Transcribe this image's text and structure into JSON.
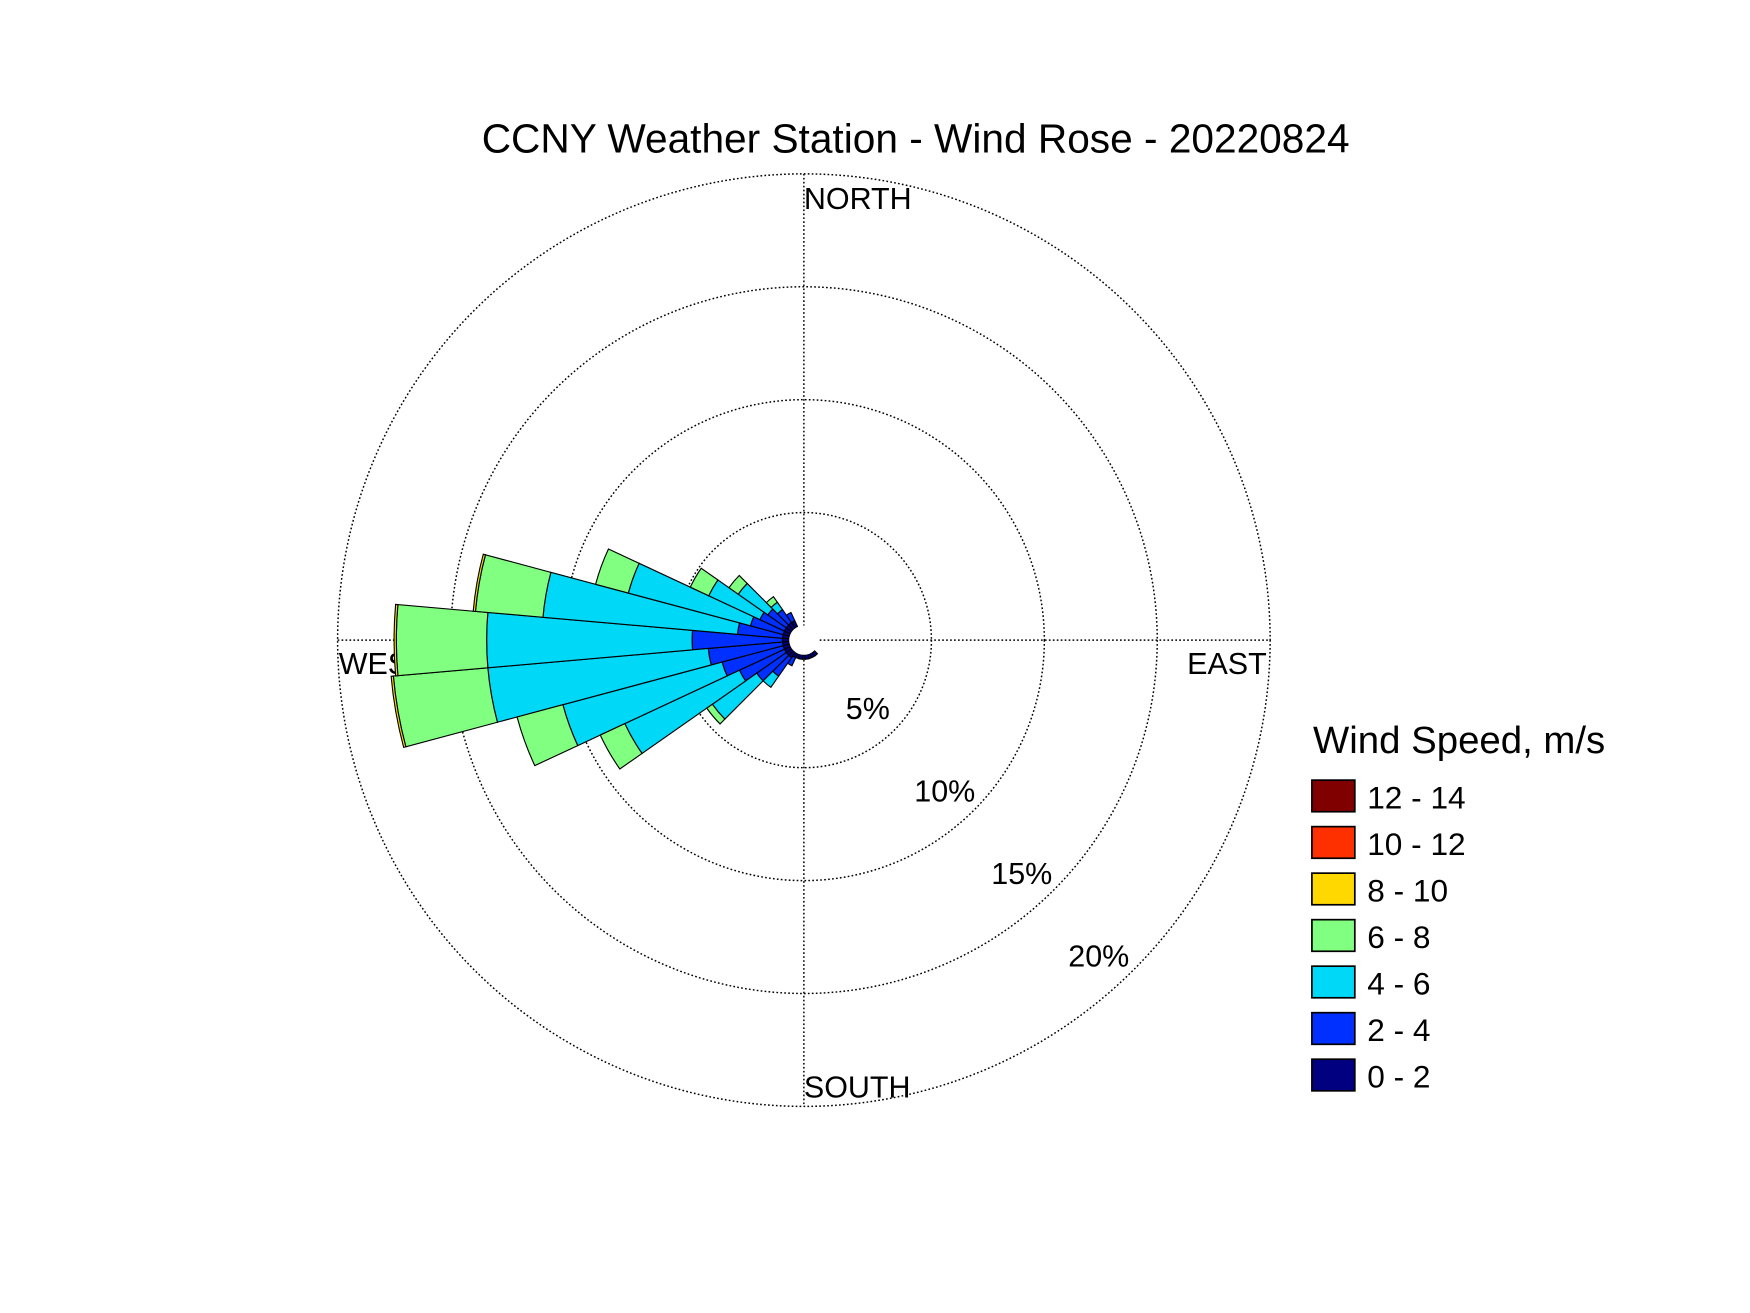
{
  "chart_data": {
    "type": "windrose",
    "title": "CCNY Weather Station - Wind Rose - 20220824",
    "compass_labels": {
      "north": "NORTH",
      "east": "EAST",
      "south": "SOUTH",
      "west": "WEST"
    },
    "legend_title": "Wind Speed, m/s",
    "categories": [
      null,
      null,
      null,
      null,
      null,
      null,
      null,
      null,
      null,
      null,
      null,
      null,
      null,
      null,
      null,
      null,
      null,
      null,
      null,
      null,
      null,
      null,
      null,
      null,
      null,
      null,
      null,
      null,
      null,
      null,
      null,
      null,
      null,
      null,
      null,
      null
    ],
    "series": [
      {
        "name": "0 - 2",
        "color": "#000080",
        "values": [
          0,
          0,
          0,
          0,
          0,
          0,
          0,
          0,
          0,
          0,
          0,
          0,
          0,
          0,
          0.2,
          0.2,
          0.2,
          0.2,
          0.2,
          0.2,
          0.2,
          0.2,
          0.3,
          0.3,
          0.3,
          0.3,
          0.3,
          0.3,
          0.3,
          0.3,
          0.3,
          0.3,
          0.3,
          0.3,
          0,
          0
        ]
      },
      {
        "name": "2 - 4",
        "color": "#0030ff",
        "values": [
          0,
          0,
          0,
          0,
          0,
          0,
          0,
          0,
          0,
          0,
          0,
          0,
          0,
          0,
          0,
          0,
          0,
          0,
          0,
          0,
          0,
          0.4,
          1.0,
          1.6,
          2.2,
          2.8,
          3.3,
          4.0,
          2.0,
          1.5,
          1.2,
          1.0,
          0.7,
          0.4,
          0,
          0
        ]
      },
      {
        "name": "4 - 6",
        "color": "#00d8f8",
        "values": [
          0,
          0,
          0,
          0,
          0,
          0,
          0,
          0,
          0,
          0,
          0,
          0,
          0,
          0,
          0,
          0,
          0,
          0,
          0,
          0,
          0,
          0,
          0.6,
          2.4,
          5.6,
          7.3,
          9.8,
          9.1,
          8.65,
          5.6,
          2.5,
          1.6,
          0.4,
          0,
          0,
          0
        ]
      },
      {
        "name": "6 - 8",
        "color": "#80ff80",
        "values": [
          0,
          0,
          0,
          0,
          0,
          0,
          0,
          0,
          0,
          0,
          0,
          0,
          0,
          0,
          0,
          0,
          0,
          0,
          0,
          0,
          0,
          0,
          0,
          0.3,
          1.2,
          2.1,
          4.2,
          4.0,
          3.0,
          1.5,
          0.9,
          0.5,
          0.3,
          0,
          0,
          0
        ]
      },
      {
        "name": "8 - 10",
        "color": "#ffd800",
        "values": [
          0,
          0,
          0,
          0,
          0,
          0,
          0,
          0,
          0,
          0,
          0,
          0,
          0,
          0,
          0,
          0,
          0,
          0,
          0,
          0,
          0,
          0,
          0,
          0,
          0,
          0,
          0.1,
          0.1,
          0.1,
          0,
          0,
          0,
          0,
          0,
          0,
          0
        ]
      },
      {
        "name": "10 - 12",
        "color": "#ff3000",
        "values": [
          0,
          0,
          0,
          0,
          0,
          0,
          0,
          0,
          0,
          0,
          0,
          0,
          0,
          0,
          0,
          0,
          0,
          0,
          0,
          0,
          0,
          0,
          0,
          0,
          0,
          0,
          0,
          0,
          0,
          0,
          0,
          0,
          0,
          0,
          0,
          0
        ]
      },
      {
        "name": "12 - 14",
        "color": "#800000",
        "values": [
          0,
          0,
          0,
          0,
          0,
          0,
          0,
          0,
          0,
          0,
          0,
          0,
          0,
          0,
          0,
          0,
          0,
          0,
          0,
          0,
          0,
          0,
          0,
          0,
          0,
          0,
          0,
          0,
          0,
          0,
          0,
          0,
          0,
          0,
          0,
          0
        ]
      }
    ],
    "rlim": [
      0,
      20
    ],
    "rticks": [
      {
        "value": 5,
        "label": "5%"
      },
      {
        "value": 10,
        "label": "10%"
      },
      {
        "value": 15,
        "label": "15%"
      },
      {
        "value": 20,
        "label": "20%"
      }
    ],
    "grid": true
  }
}
